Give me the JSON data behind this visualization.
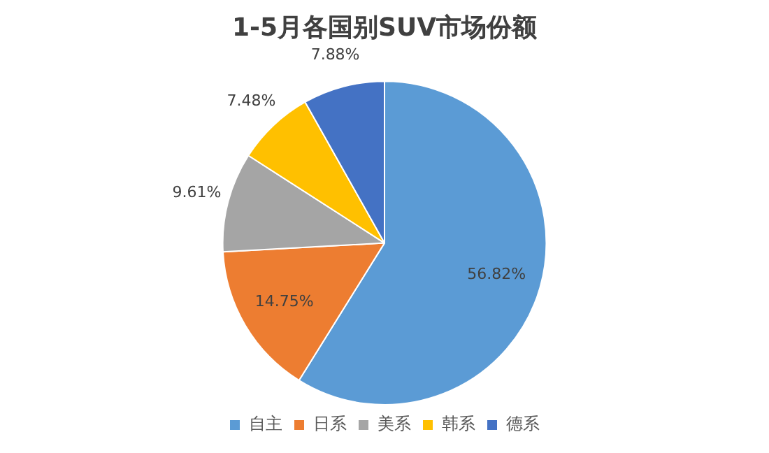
{
  "chart_data": {
    "type": "pie",
    "title": "1-5月各国别SUV市场份额",
    "categories": [
      "自主",
      "日系",
      "美系",
      "韩系",
      "德系"
    ],
    "values": [
      56.82,
      14.75,
      9.61,
      7.48,
      7.88
    ],
    "colors": [
      "#5b9bd5",
      "#ed7d31",
      "#a5a5a5",
      "#ffc000",
      "#4472c4"
    ],
    "value_labels": [
      "56.82%",
      "14.75%",
      "9.61%",
      "7.48%",
      "7.88%"
    ],
    "legend": "bottom"
  }
}
